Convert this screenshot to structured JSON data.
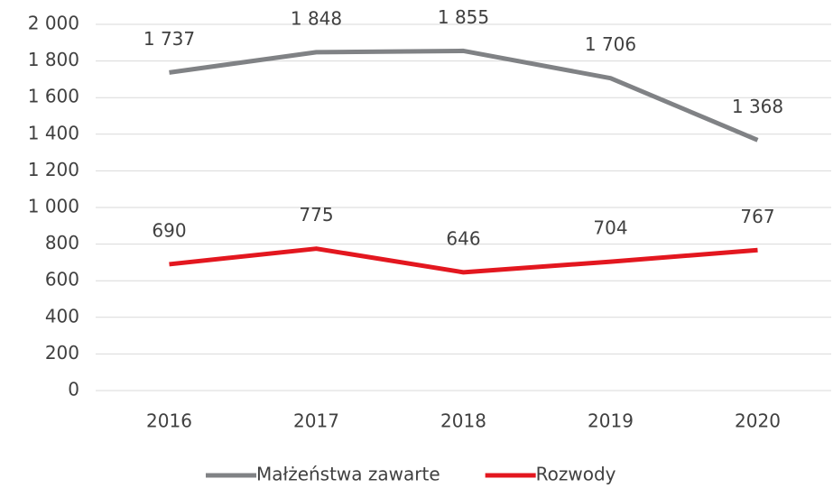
{
  "chart_data": {
    "type": "line",
    "categories": [
      "2016",
      "2017",
      "2018",
      "2019",
      "2020"
    ],
    "series": [
      {
        "name": "Małżeństwa zawarte",
        "color": "#808285",
        "values": [
          1737,
          1848,
          1855,
          1706,
          1368
        ],
        "value_labels": [
          "1 737",
          "1 848",
          "1 855",
          "1 706",
          "1 368"
        ]
      },
      {
        "name": "Rozwody",
        "color": "#e3171f",
        "values": [
          690,
          775,
          646,
          704,
          767
        ]
      }
    ],
    "ylim": [
      0,
      2000
    ],
    "yticks": [
      0,
      200,
      400,
      600,
      800,
      {
        "value": 1000,
        "label": "1 000"
      },
      {
        "value": 1200,
        "label": "1 200"
      },
      {
        "value": 1400,
        "label": "1 400"
      },
      {
        "value": 1600,
        "label": "1 600"
      },
      {
        "value": 1800,
        "label": "1 800"
      },
      {
        "value": 2000,
        "label": "2 000"
      }
    ],
    "grid": true,
    "legend": "bottom"
  }
}
